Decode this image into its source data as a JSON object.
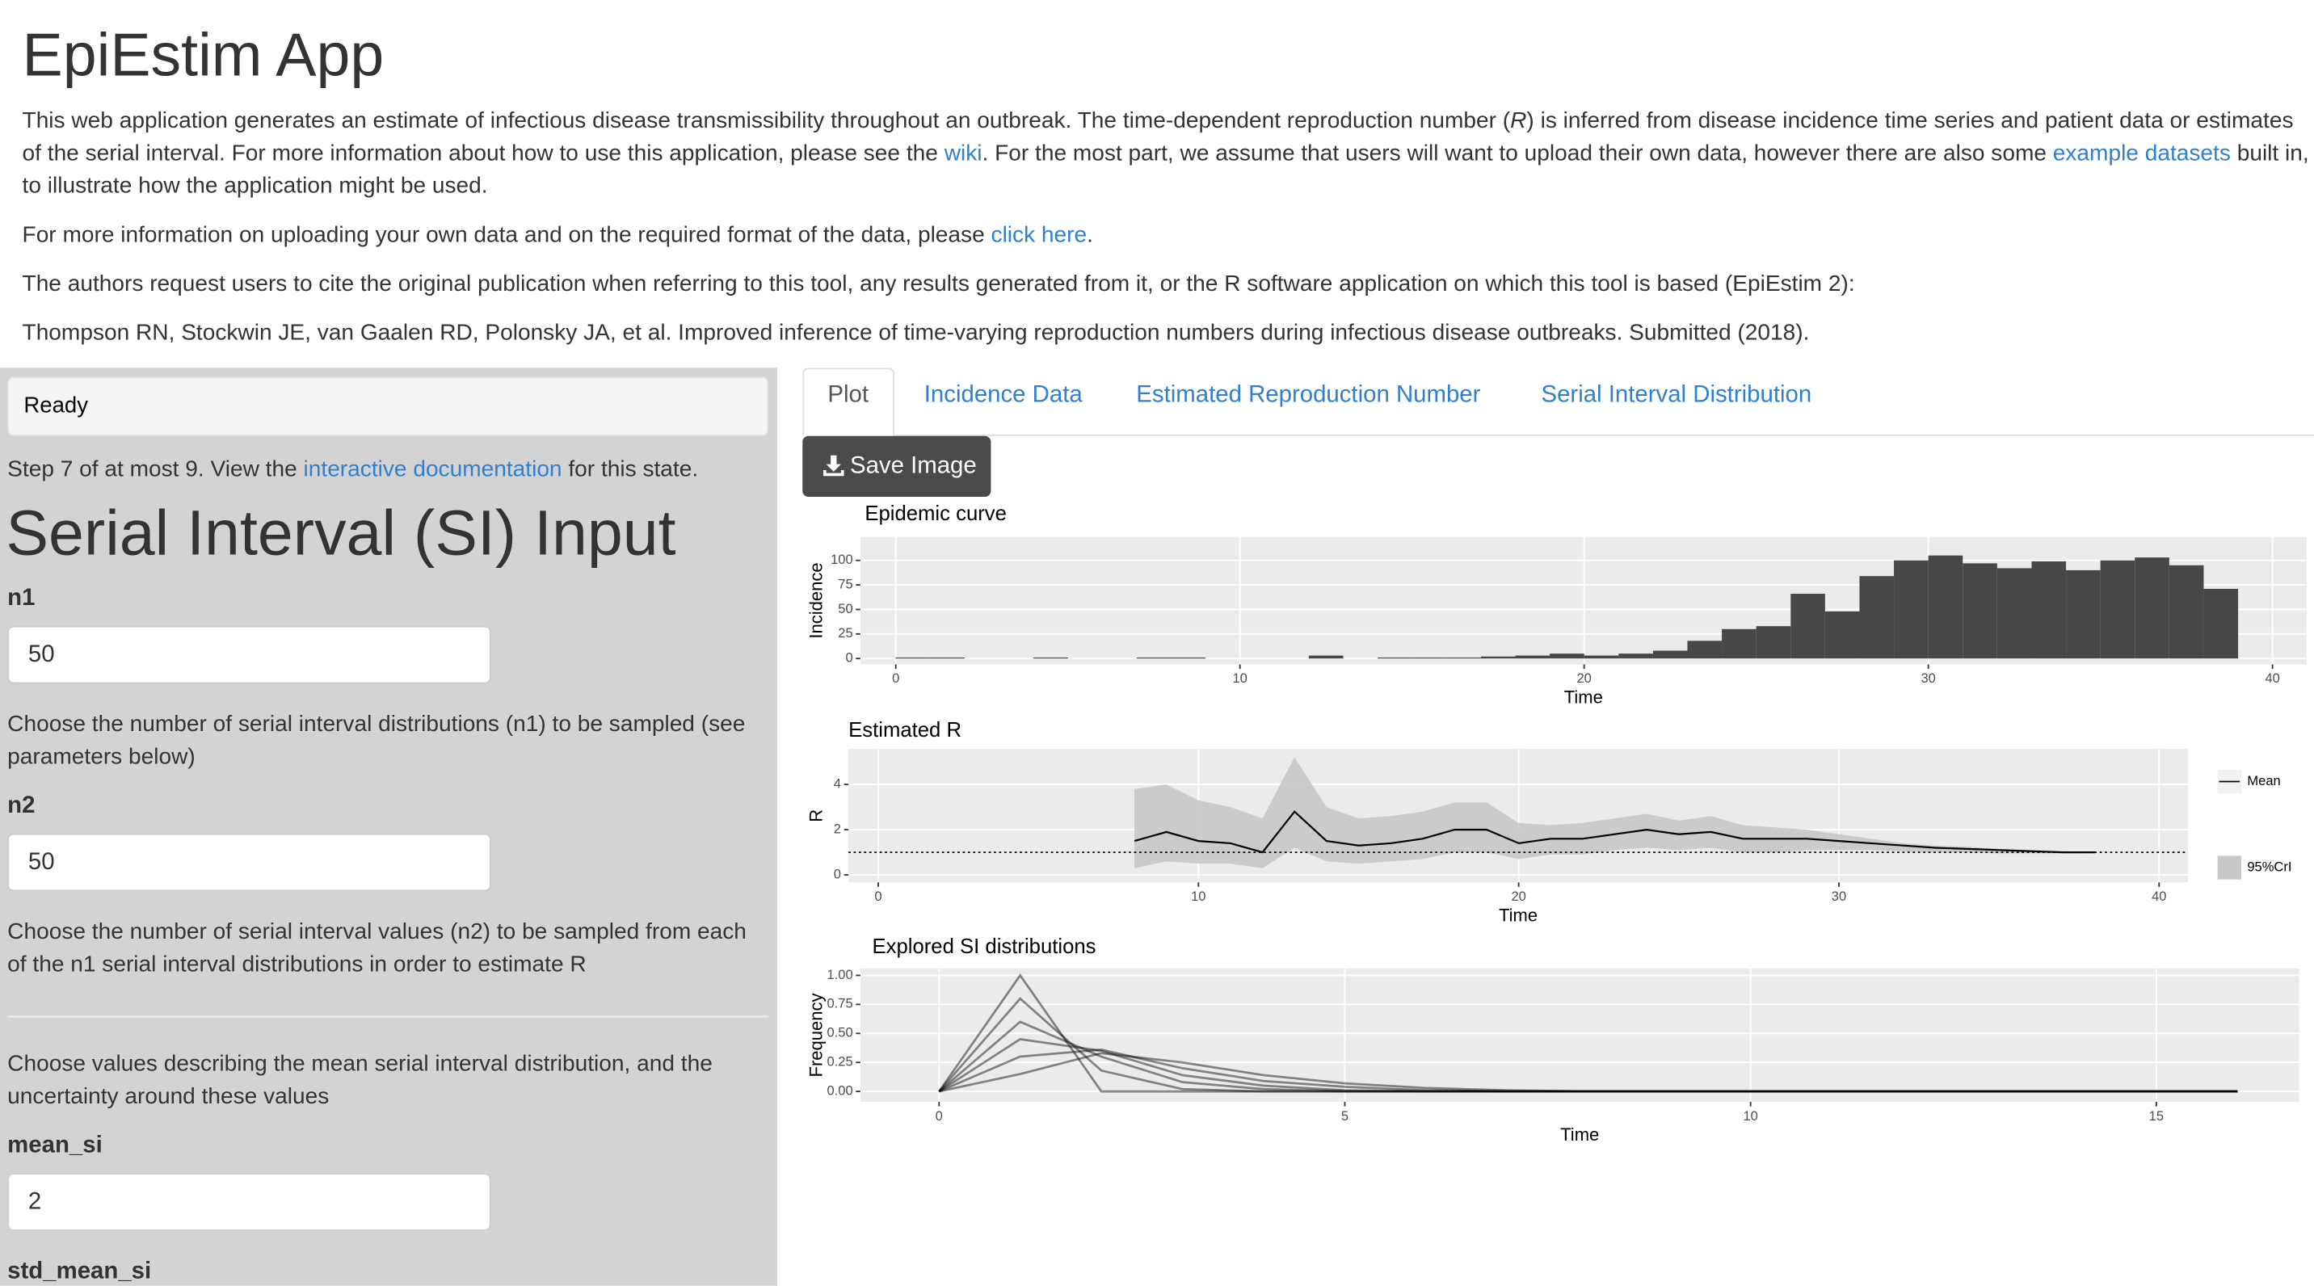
{
  "header": {
    "title": "EpiEstim App",
    "paragraphs": [
      [
        "This web application generates an estimate of infectious disease transmissibility throughout an outbreak. The time-dependent reproduction number (",
        "R",
        ") is inferred from disease incidence time series and patient data or estimates of the serial interval. For more information about how to use this application, please see the ",
        "wiki",
        ". For the most part, we assume that users will want to upload their own data, however there are also some ",
        "example datasets",
        " built in, to illustrate how the application might be used."
      ],
      [
        "For more information on uploading your own data and on the required format of the data, please ",
        "click here",
        "."
      ],
      [
        "The authors request users to cite the original publication when referring to this tool, any results generated from it, or the R software application on which this tool is based (EpiEstim 2):"
      ],
      [
        "Thompson RN, Stockwin JE, van Gaalen RD, Polonsky JA, et al. Improved inference of time-varying reproduction numbers during infectious disease outbreaks. Submitted (2018)."
      ]
    ]
  },
  "sidebar": {
    "status": "Ready",
    "step": [
      "Step 7 of at most 9. View the ",
      "interactive documentation",
      " for this state."
    ],
    "heading": "Serial Interval (SI) Input",
    "fields": [
      {
        "label": "n1",
        "value": "50",
        "help": "Choose the number of serial interval distributions (n1) to be sampled (see parameters below)"
      },
      {
        "label": "n2",
        "value": "50",
        "help": "Choose the number of serial interval values (n2) to be sampled from each of the n1 serial interval distributions in order to estimate R"
      }
    ],
    "section_help": "Choose values describing the mean serial interval distribution, and the uncertainty around these values",
    "fields2": [
      {
        "label": "mean_si",
        "value": "2"
      },
      {
        "label": "std_mean_si"
      }
    ]
  },
  "tabs": [
    "Plot",
    "Incidence Data",
    "Estimated Reproduction Number",
    "Serial Interval Distribution"
  ],
  "save_button": "Save Image",
  "chart_data": [
    {
      "type": "bar",
      "title": "Epidemic curve",
      "x_label": "Time",
      "y_label": "Incidence",
      "x": [
        1,
        2,
        3,
        4,
        5,
        6,
        7,
        8,
        9,
        10,
        11,
        12,
        13,
        14,
        15,
        16,
        17,
        18,
        19,
        20,
        21,
        22,
        23,
        24,
        25,
        26,
        27,
        28,
        29,
        30,
        31,
        32,
        33,
        34,
        35,
        36,
        37,
        38,
        39
      ],
      "values": [
        1,
        1,
        0,
        0,
        1,
        0,
        0,
        1,
        1,
        0,
        0,
        0,
        3,
        0,
        1,
        1,
        1,
        2,
        3,
        5,
        3,
        5,
        8,
        18,
        30,
        33,
        66,
        48,
        84,
        100,
        105,
        97,
        92,
        99,
        90,
        100,
        103,
        95,
        71
      ],
      "color": "#474747",
      "xlim": [
        -1.03,
        40.99
      ],
      "ylim": [
        -6,
        124
      ],
      "xticks": [
        0,
        10,
        20,
        30,
        40
      ],
      "yticks": [
        0,
        25,
        50,
        75,
        100
      ],
      "grid": true
    },
    {
      "type": "line",
      "title": "Estimated R",
      "x_label": "Time",
      "y_label": "R",
      "x": [
        8,
        9,
        10,
        11,
        12,
        13,
        14,
        15,
        16,
        17,
        18,
        19,
        20,
        21,
        22,
        23,
        24,
        25,
        26,
        27,
        28,
        29,
        30,
        31,
        32,
        33,
        34,
        35,
        36,
        37,
        38
      ],
      "series": [
        {
          "name": "Mean",
          "color": "#000000",
          "values": [
            1.5,
            1.9,
            1.5,
            1.4,
            1.0,
            2.8,
            1.5,
            1.3,
            1.4,
            1.6,
            2.0,
            2.0,
            1.4,
            1.6,
            1.6,
            1.8,
            2.0,
            1.8,
            1.9,
            1.6,
            1.6,
            1.6,
            1.5,
            1.4,
            1.3,
            1.2,
            1.15,
            1.1,
            1.05,
            1.0,
            1.0
          ]
        }
      ],
      "band": {
        "name": "95%CrI",
        "color": "#c8c8c8",
        "upper": [
          3.8,
          4.0,
          3.3,
          3.0,
          2.5,
          5.2,
          3.0,
          2.5,
          2.6,
          2.8,
          3.2,
          3.2,
          2.3,
          2.2,
          2.3,
          2.5,
          2.7,
          2.4,
          2.6,
          2.2,
          2.1,
          2.0,
          1.8,
          1.6,
          1.4,
          1.3,
          1.25,
          1.15,
          1.1,
          1.05,
          1.02
        ],
        "lower": [
          0.3,
          0.6,
          0.5,
          0.5,
          0.3,
          1.2,
          0.6,
          0.5,
          0.6,
          0.7,
          1.0,
          1.0,
          0.7,
          0.9,
          0.9,
          1.1,
          1.2,
          1.1,
          1.2,
          1.0,
          1.0,
          1.1,
          1.1,
          1.1,
          1.05,
          1.0,
          1.0,
          0.95,
          0.95,
          0.95,
          0.97
        ]
      },
      "hline": 1,
      "xlim": [
        -0.93,
        40.9
      ],
      "ylim": [
        -0.33,
        5.57
      ],
      "xticks": [
        0,
        10,
        20,
        30,
        40
      ],
      "yticks": [
        0,
        2,
        4
      ],
      "grid": true,
      "legend": "right"
    },
    {
      "type": "line",
      "title": "Explored SI distributions",
      "x_label": "Time",
      "y_label": "Frequency",
      "x": [
        0,
        1,
        2,
        3,
        4,
        5,
        6,
        7,
        8,
        9,
        10,
        11,
        12,
        13,
        14,
        15,
        16
      ],
      "series": [
        {
          "color": "#000000",
          "values": [
            0,
            1.0,
            0,
            0,
            0,
            0,
            0,
            0,
            0,
            0,
            0,
            0,
            0,
            0,
            0,
            0,
            0
          ]
        },
        {
          "color": "#000000",
          "values": [
            0,
            0.8,
            0.18,
            0.02,
            0,
            0,
            0,
            0,
            0,
            0,
            0,
            0,
            0,
            0,
            0,
            0,
            0
          ]
        },
        {
          "color": "#000000",
          "values": [
            0,
            0.6,
            0.3,
            0.08,
            0.02,
            0,
            0,
            0,
            0,
            0,
            0,
            0,
            0,
            0,
            0,
            0,
            0
          ]
        },
        {
          "color": "#000000",
          "values": [
            0,
            0.45,
            0.35,
            0.14,
            0.05,
            0.01,
            0,
            0,
            0,
            0,
            0,
            0,
            0,
            0,
            0,
            0,
            0
          ]
        },
        {
          "color": "#000000",
          "values": [
            0,
            0.3,
            0.36,
            0.2,
            0.09,
            0.04,
            0.01,
            0,
            0,
            0,
            0,
            0,
            0,
            0,
            0,
            0,
            0
          ]
        },
        {
          "color": "#000000",
          "values": [
            0,
            0.15,
            0.33,
            0.25,
            0.14,
            0.07,
            0.03,
            0.01,
            0,
            0,
            0,
            0,
            0,
            0,
            0,
            0,
            0
          ]
        }
      ],
      "xlim": [
        -0.97,
        16.76
      ],
      "ylim": [
        -0.09,
        1.06
      ],
      "xticks": [
        0,
        5,
        10,
        15
      ],
      "yticks": [
        {
          "value": 0,
          "label": "0.00"
        },
        0.25,
        {
          "value": 0.5,
          "label": "0.50"
        },
        0.75,
        {
          "value": 1,
          "label": "1.00"
        }
      ],
      "grid": true
    }
  ]
}
